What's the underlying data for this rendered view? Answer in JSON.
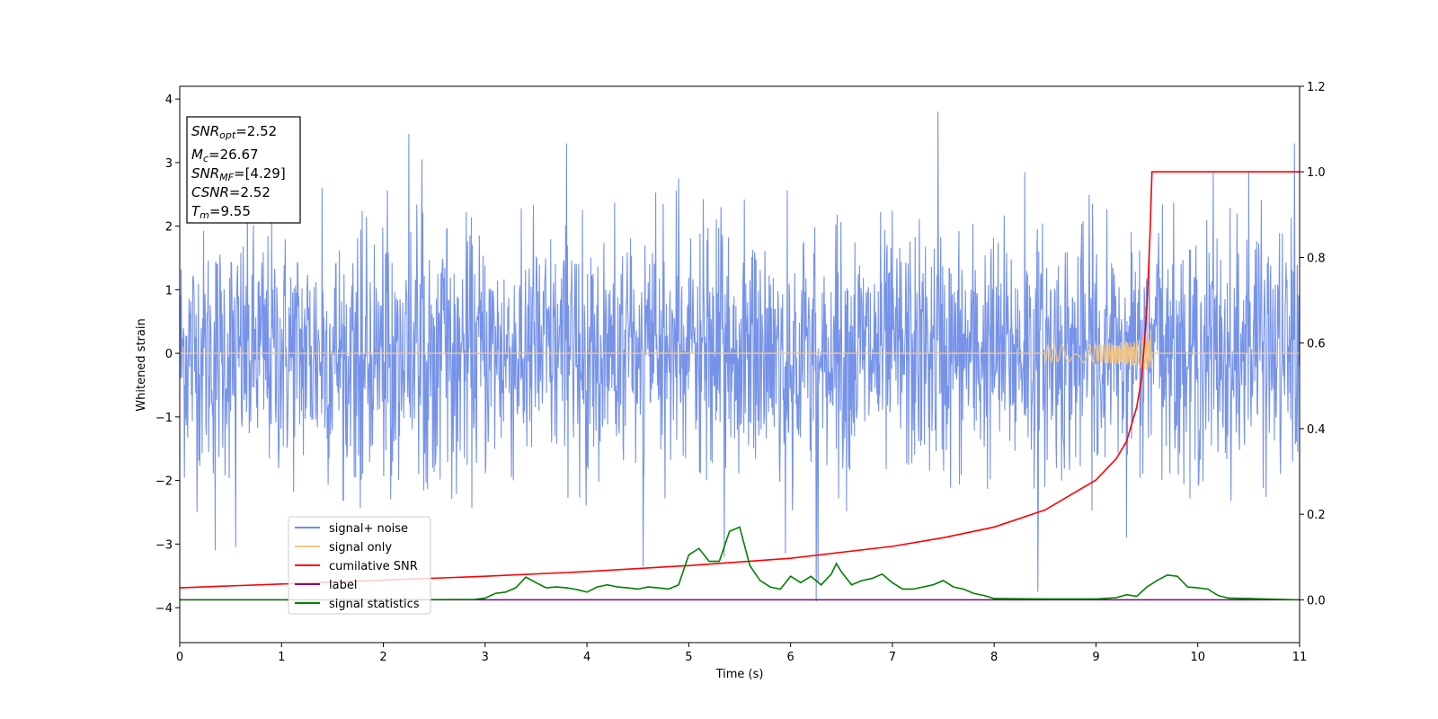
{
  "chart_data": {
    "type": "line",
    "xlabel": "Time (s)",
    "ylabel": "Whitened strain",
    "xlim": [
      0,
      11
    ],
    "ylim_left": [
      -4.55,
      4.2
    ],
    "ylim_right": [
      -0.1,
      1.2
    ],
    "x_ticks": [
      "0",
      "1",
      "2",
      "3",
      "4",
      "5",
      "6",
      "7",
      "8",
      "9",
      "10",
      "11"
    ],
    "y_ticks_left": [
      "−4",
      "−3",
      "−2",
      "−1",
      "0",
      "1",
      "2",
      "3",
      "4"
    ],
    "y_ticks_right": [
      "0.0",
      "0.2",
      "0.4",
      "0.6",
      "0.8",
      "1.0",
      "1.2"
    ],
    "annotation": {
      "snr_opt": {
        "name": "SNR",
        "sub": "opt",
        "value": "=2.52"
      },
      "mc": {
        "name": "M",
        "sub": "c",
        "value": "=26.67"
      },
      "snr_mf": {
        "name": "SNR",
        "sub": "MF",
        "value": "=[4.29]"
      },
      "csnr": {
        "name": "CSNR",
        "sub": "",
        "value": "=2.52"
      },
      "tm": {
        "name": "T",
        "sub": "m",
        "value": "=9.55"
      }
    },
    "legend": {
      "placement": "lower-left",
      "entries": [
        {
          "label": "signal+ noise",
          "color": "#6f8de8"
        },
        {
          "label": "signal only",
          "color": "#f5c77e"
        },
        {
          "label": "cumilative SNR",
          "color": "#ff0000"
        },
        {
          "label": "label",
          "color": "#800080"
        },
        {
          "label": "signal statistics",
          "color": "#008000"
        }
      ]
    },
    "series": [
      {
        "name": "signal+ noise",
        "axis": "left",
        "color": "#6f8de8",
        "description_values": {
          "noise_band_std": 0.95,
          "max_spike": 3.8,
          "min_spike": -3.95
        },
        "spikes": [
          [
            0.35,
            -3.1
          ],
          [
            0.55,
            -3.05
          ],
          [
            1.4,
            2.6
          ],
          [
            2.25,
            3.45
          ],
          [
            2.38,
            3.05
          ],
          [
            3.8,
            3.3
          ],
          [
            4.55,
            -3.35
          ],
          [
            4.9,
            2.75
          ],
          [
            5.35,
            -3.2
          ],
          [
            5.95,
            -3.15
          ],
          [
            6.25,
            -3.9
          ],
          [
            6.27,
            -3.6
          ],
          [
            7.45,
            3.8
          ],
          [
            8.3,
            2.85
          ],
          [
            8.43,
            -3.75
          ],
          [
            9.3,
            -2.9
          ],
          [
            10.15,
            2.85
          ],
          [
            10.5,
            2.85
          ],
          [
            10.95,
            3.3
          ]
        ]
      },
      {
        "name": "signal only",
        "axis": "left",
        "color": "#f5c77e",
        "chirp": {
          "end_time": 9.55,
          "peak_amplitude": 0.55
        }
      },
      {
        "name": "cumilative SNR",
        "axis": "right",
        "color": "#ff0000",
        "points": [
          [
            0,
            0.028
          ],
          [
            1,
            0.037
          ],
          [
            2,
            0.046
          ],
          [
            3,
            0.055
          ],
          [
            4,
            0.066
          ],
          [
            5,
            0.08
          ],
          [
            6,
            0.097
          ],
          [
            7,
            0.125
          ],
          [
            7.5,
            0.145
          ],
          [
            8,
            0.17
          ],
          [
            8.5,
            0.21
          ],
          [
            9,
            0.28
          ],
          [
            9.2,
            0.33
          ],
          [
            9.3,
            0.37
          ],
          [
            9.4,
            0.45
          ],
          [
            9.45,
            0.52
          ],
          [
            9.5,
            0.68
          ],
          [
            9.53,
            0.85
          ],
          [
            9.55,
            1.0
          ],
          [
            11,
            1.0
          ]
        ]
      },
      {
        "name": "label",
        "axis": "right",
        "color": "#800080",
        "points": [
          [
            0,
            0.0
          ],
          [
            11,
            0.0
          ]
        ]
      },
      {
        "name": "signal statistics",
        "axis": "right",
        "color": "#008000",
        "points": [
          [
            0,
            0.0
          ],
          [
            1,
            0.0
          ],
          [
            2,
            0.0
          ],
          [
            2.9,
            0.001
          ],
          [
            3.0,
            0.004
          ],
          [
            3.1,
            0.015
          ],
          [
            3.2,
            0.018
          ],
          [
            3.3,
            0.028
          ],
          [
            3.4,
            0.053
          ],
          [
            3.5,
            0.04
          ],
          [
            3.6,
            0.028
          ],
          [
            3.7,
            0.03
          ],
          [
            3.8,
            0.028
          ],
          [
            3.9,
            0.024
          ],
          [
            4.0,
            0.018
          ],
          [
            4.1,
            0.03
          ],
          [
            4.2,
            0.035
          ],
          [
            4.3,
            0.03
          ],
          [
            4.4,
            0.028
          ],
          [
            4.5,
            0.025
          ],
          [
            4.6,
            0.03
          ],
          [
            4.7,
            0.028
          ],
          [
            4.8,
            0.025
          ],
          [
            4.9,
            0.035
          ],
          [
            5.0,
            0.105
          ],
          [
            5.1,
            0.12
          ],
          [
            5.2,
            0.09
          ],
          [
            5.3,
            0.09
          ],
          [
            5.4,
            0.16
          ],
          [
            5.5,
            0.17
          ],
          [
            5.6,
            0.08
          ],
          [
            5.7,
            0.045
          ],
          [
            5.8,
            0.03
          ],
          [
            5.9,
            0.025
          ],
          [
            6.0,
            0.055
          ],
          [
            6.1,
            0.04
          ],
          [
            6.2,
            0.055
          ],
          [
            6.3,
            0.035
          ],
          [
            6.4,
            0.06
          ],
          [
            6.45,
            0.085
          ],
          [
            6.5,
            0.065
          ],
          [
            6.6,
            0.035
          ],
          [
            6.7,
            0.045
          ],
          [
            6.8,
            0.05
          ],
          [
            6.9,
            0.06
          ],
          [
            7.0,
            0.04
          ],
          [
            7.1,
            0.025
          ],
          [
            7.2,
            0.025
          ],
          [
            7.3,
            0.03
          ],
          [
            7.4,
            0.035
          ],
          [
            7.5,
            0.045
          ],
          [
            7.6,
            0.03
          ],
          [
            7.7,
            0.025
          ],
          [
            7.8,
            0.015
          ],
          [
            7.9,
            0.01
          ],
          [
            8.0,
            0.003
          ],
          [
            8.5,
            0.002
          ],
          [
            9.0,
            0.002
          ],
          [
            9.2,
            0.005
          ],
          [
            9.3,
            0.012
          ],
          [
            9.4,
            0.008
          ],
          [
            9.5,
            0.03
          ],
          [
            9.6,
            0.045
          ],
          [
            9.7,
            0.058
          ],
          [
            9.8,
            0.055
          ],
          [
            9.9,
            0.03
          ],
          [
            10.0,
            0.028
          ],
          [
            10.1,
            0.025
          ],
          [
            10.2,
            0.01
          ],
          [
            10.3,
            0.004
          ],
          [
            10.5,
            0.003
          ],
          [
            11,
            0.0
          ]
        ]
      }
    ],
    "grid": false
  }
}
